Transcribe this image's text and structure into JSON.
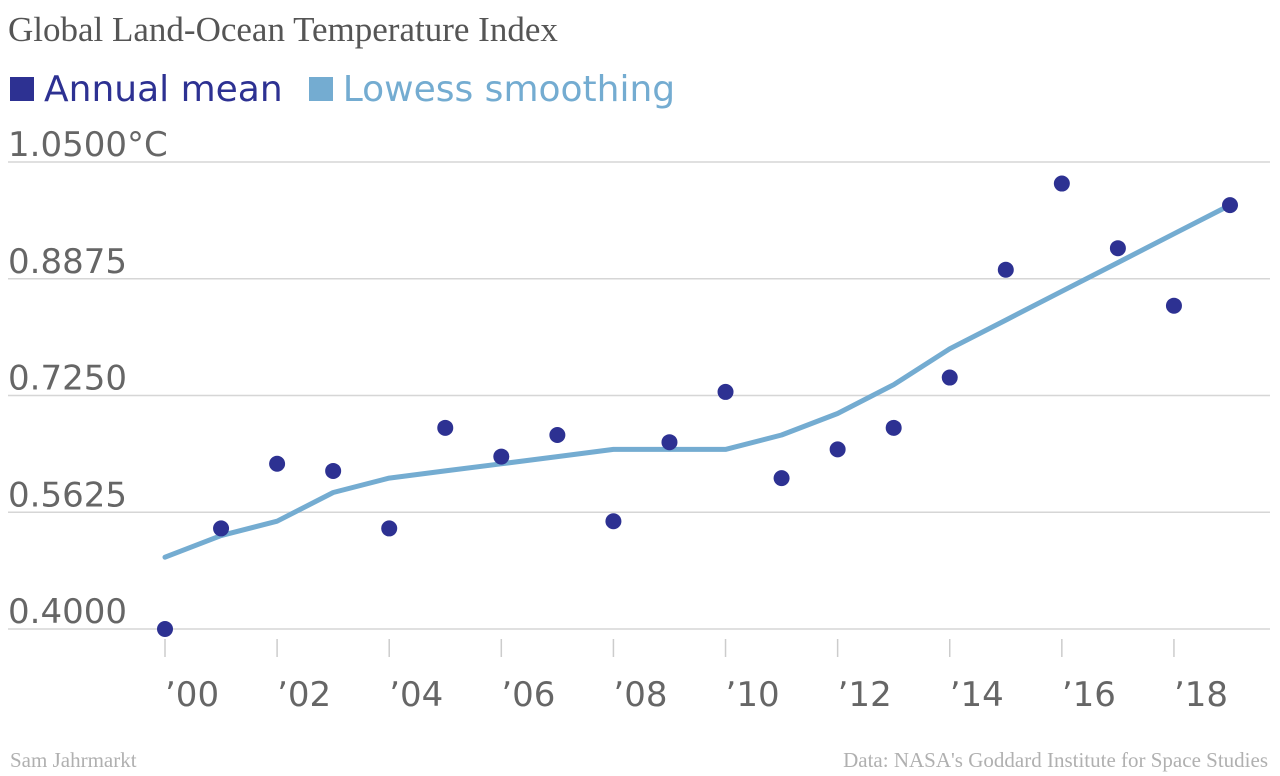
{
  "chart_data": {
    "type": "line",
    "title": "Global Land-Ocean Temperature Index",
    "x": [
      2000,
      2001,
      2002,
      2003,
      2004,
      2005,
      2006,
      2007,
      2008,
      2009,
      2010,
      2011,
      2012,
      2013,
      2014,
      2015,
      2016,
      2017,
      2018,
      2019
    ],
    "series": [
      {
        "name": "Annual mean",
        "kind": "scatter",
        "color": "#2d3192",
        "values": [
          0.4,
          0.54,
          0.63,
          0.62,
          0.54,
          0.68,
          0.64,
          0.67,
          0.55,
          0.66,
          0.73,
          0.61,
          0.65,
          0.68,
          0.75,
          0.9,
          1.02,
          0.93,
          0.85,
          0.99
        ]
      },
      {
        "name": "Lowess smoothing",
        "kind": "line",
        "color": "#74acd1",
        "values": [
          0.5,
          0.53,
          0.55,
          0.59,
          0.61,
          0.62,
          0.63,
          0.64,
          0.65,
          0.65,
          0.65,
          0.67,
          0.7,
          0.74,
          0.79,
          0.83,
          0.87,
          0.91,
          0.95,
          0.99
        ]
      }
    ],
    "ylim": [
      0.4,
      1.05
    ],
    "yticks": [
      0.4,
      0.5625,
      0.725,
      0.8875,
      1.05
    ],
    "ytick_labels": [
      "0.4000",
      "0.5625",
      "0.7250",
      "0.8875",
      "1.0500°C"
    ],
    "xticks": [
      2000,
      2002,
      2004,
      2006,
      2008,
      2010,
      2012,
      2014,
      2016,
      2018
    ],
    "xtick_labels": [
      "’00",
      "’02",
      "’04",
      "’06",
      "’08",
      "’10",
      "’12",
      "’14",
      "’16",
      "’18"
    ],
    "xlim": [
      2000,
      2019
    ],
    "grid": "horizontal",
    "legend": "top-left",
    "xlabel": "",
    "ylabel": ""
  },
  "footer": {
    "author": "Sam Jahrmarkt",
    "source": "Data: NASA's Goddard Institute for Space Studies"
  }
}
